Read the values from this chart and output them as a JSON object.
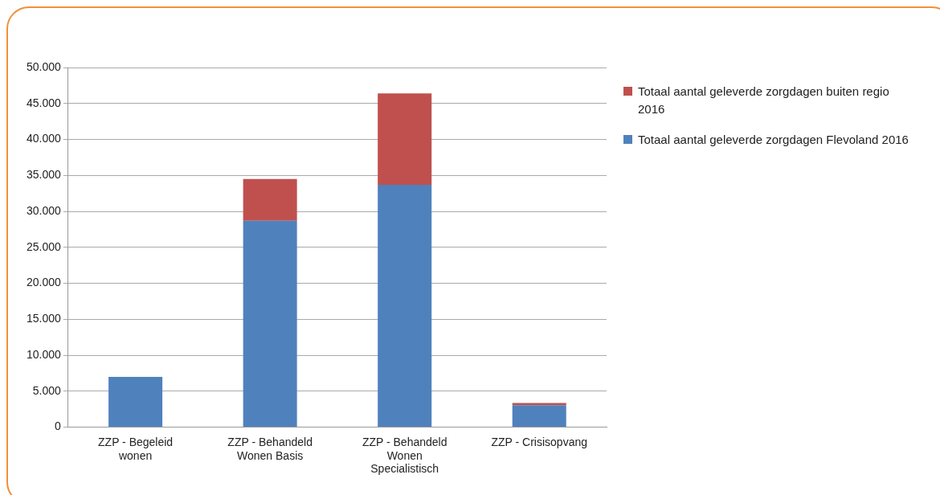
{
  "chart_data": {
    "type": "bar",
    "stacked": true,
    "categories": [
      "ZZP - Begeleid wonen",
      "ZZP - Behandeld Wonen Basis",
      "ZZP - Behandeld Wonen Specialistisch",
      "ZZP - Crisisopvang"
    ],
    "series": [
      {
        "name": "Totaal aantal geleverde zorgdagen Flevoland 2016",
        "color": "#4f81bd",
        "values": [
          7000,
          28700,
          33700,
          3060
        ]
      },
      {
        "name": "Totaal aantal geleverde zorgdagen buiten regio 2016",
        "color": "#c0504d",
        "values": [
          0,
          5800,
          12700,
          300
        ]
      }
    ],
    "ylim": [
      0,
      50000
    ],
    "yticks": [
      {
        "value": 0,
        "label": "0"
      },
      {
        "value": 5000,
        "label": "5.000"
      },
      {
        "value": 10000,
        "label": "10.000"
      },
      {
        "value": 15000,
        "label": "15.000"
      },
      {
        "value": 20000,
        "label": "20.000"
      },
      {
        "value": 25000,
        "label": "25.000"
      },
      {
        "value": 30000,
        "label": "30.000"
      },
      {
        "value": 35000,
        "label": "35.000"
      },
      {
        "value": 40000,
        "label": "40.000"
      },
      {
        "value": 45000,
        "label": "45.000"
      },
      {
        "value": 50000,
        "label": "50.000"
      }
    ],
    "grid": "y",
    "legend": "right"
  }
}
